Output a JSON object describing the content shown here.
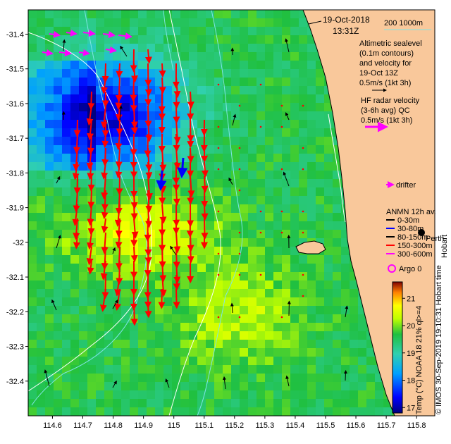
{
  "map": {
    "date": "19-Oct-2018",
    "time": "13:31Z",
    "depth_legend": "200  1000m",
    "altimetry_label_lines": [
      "Altimetric sealevel",
      "(0.1m contours)",
      "and velocity for",
      "19-Oct 13Z",
      "0.5m/s (1kt 3h)"
    ],
    "hf_label_lines": [
      "HF radar velocity",
      "(3-6h avg) QC",
      "0.5m/s (1kt 3h)"
    ],
    "drifter_label": "drifter",
    "anmn_label": "ANMN 12h av.",
    "anmn_depths": [
      {
        "label": "0-30m",
        "color": "#000000"
      },
      {
        "label": "30-80m",
        "color": "#0000ff"
      },
      {
        "label": "80-150m",
        "color": "#000000"
      },
      {
        "label": "150-300m",
        "color": "#ff0000"
      },
      {
        "label": "300-600m",
        "color": "#ff00ff"
      }
    ],
    "city_label": "Perth",
    "hobart_label": "Hobart",
    "argo_label": "Argo 0",
    "colorbar_title": "Temp (°C) NOAA 18 21% ql>=4",
    "credit": "© IMOS 30-Sep-2019 19:10:31 Hobart time",
    "colors": {
      "land": "#f9c89b",
      "coast": "#000000",
      "depth_200": "#7fe5e5",
      "altimetry_contour": "#ffffff",
      "hf_vector": "#ff0000",
      "altimetry_vector": "#000000",
      "drifter": "#ff00ff",
      "anmn_blue": "#0000ff"
    }
  },
  "chart_data": {
    "type": "heatmap",
    "x_ticks": [
      "114.6",
      "114.7",
      "114.8",
      "114.9",
      "115",
      "115.1",
      "115.2",
      "115.3",
      "115.4",
      "115.5",
      "115.6",
      "115.7",
      "115.8"
    ],
    "y_ticks": [
      "-31.4",
      "-31.5",
      "-31.6",
      "-31.7",
      "-31.8",
      "-31.9",
      "-32",
      "-32.1",
      "-32.2",
      "-32.3",
      "-32.4"
    ],
    "xlim": [
      114.52,
      115.86
    ],
    "ylim": [
      -32.5,
      -31.33
    ],
    "colorbar_ticks": [
      "17",
      "18",
      "19",
      "20",
      "21"
    ],
    "colorbar_range": [
      16.8,
      21.6
    ]
  }
}
